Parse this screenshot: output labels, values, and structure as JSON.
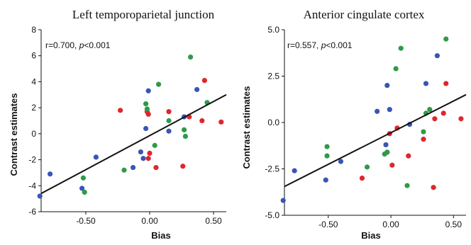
{
  "chart_data": [
    {
      "type": "scatter",
      "title": "Left temporoparietal junction",
      "xlabel": "Bias",
      "ylabel": "Contrast estimates",
      "annotation": {
        "r_text": "r=0.700, ",
        "p_var": "p",
        "p_text": "<0.001"
      },
      "xlim": [
        -0.85,
        0.6
      ],
      "ylim": [
        -6,
        8
      ],
      "xticks": [
        -0.5,
        0.0,
        0.5
      ],
      "xtick_labels": [
        "-0.50",
        "0.00",
        "0.50"
      ],
      "yticks": [
        -6,
        -4,
        -2,
        0,
        2,
        4,
        6,
        8
      ],
      "ytick_labels": [
        "-6",
        "-4",
        "-2",
        "0",
        "2",
        "4",
        "6",
        "8"
      ],
      "grid": false,
      "colors": {
        "blue": "#3a55b4",
        "red": "#e0262b",
        "green": "#2f9a48",
        "line": "#111111"
      },
      "regression_line": {
        "x": [
          -0.85,
          0.6
        ],
        "y": [
          -4.6,
          3.0
        ]
      },
      "series": [
        {
          "color": "blue",
          "x": [
            -0.86,
            -0.78,
            -0.53,
            -0.42,
            -0.13,
            -0.07,
            -0.05,
            -0.03,
            -0.01,
            0.15,
            0.27,
            0.37
          ],
          "y": [
            -4.8,
            -3.1,
            -4.2,
            -1.8,
            -2.6,
            -1.4,
            -1.9,
            0.4,
            3.3,
            0.2,
            1.3,
            3.4
          ]
        },
        {
          "color": "red",
          "x": [
            -0.23,
            -0.02,
            -0.01,
            -0.01,
            0.0,
            0.05,
            0.15,
            0.26,
            0.31,
            0.41,
            0.43,
            0.56
          ],
          "y": [
            1.8,
            1.7,
            1.5,
            -1.9,
            -1.5,
            -2.6,
            1.7,
            -2.5,
            1.3,
            1.0,
            4.1,
            0.9
          ]
        },
        {
          "color": "green",
          "x": [
            -0.52,
            -0.51,
            -0.2,
            -0.03,
            -0.02,
            0.04,
            0.07,
            0.15,
            0.27,
            0.28,
            0.32,
            0.45
          ],
          "y": [
            -3.4,
            -4.5,
            -2.8,
            2.3,
            1.9,
            -0.9,
            3.8,
            1.0,
            0.3,
            -0.2,
            5.9,
            2.4
          ]
        }
      ]
    },
    {
      "type": "scatter",
      "title": "Anterior cingulate cortex",
      "xlabel": "Bias",
      "ylabel": "Contrast estimates",
      "annotation": {
        "r_text": "r=0.557, ",
        "p_var": "p",
        "p_text": "<0.001"
      },
      "xlim": [
        -0.85,
        0.6
      ],
      "ylim": [
        -5,
        5
      ],
      "xticks": [
        -0.5,
        0.0,
        0.5
      ],
      "xtick_labels": [
        "-0.50",
        "0.00",
        "0.50"
      ],
      "yticks": [
        -5,
        -2.5,
        0,
        2.5,
        5
      ],
      "ytick_labels": [
        "-5.0",
        "-2.5",
        "0.0",
        "2.5",
        "5.0"
      ],
      "grid": false,
      "colors": {
        "blue": "#3a55b4",
        "red": "#e0262b",
        "green": "#2f9a48",
        "line": "#111111"
      },
      "regression_line": {
        "x": [
          -0.85,
          0.6
        ],
        "y": [
          -3.45,
          1.5
        ]
      },
      "series": [
        {
          "color": "blue",
          "x": [
            -0.86,
            -0.77,
            -0.52,
            -0.4,
            -0.11,
            -0.04,
            -0.03,
            -0.01,
            0.15,
            0.28,
            0.37
          ],
          "y": [
            -4.2,
            -2.6,
            -3.1,
            -2.1,
            0.6,
            -1.2,
            2.0,
            0.7,
            -0.1,
            2.1,
            3.6
          ]
        },
        {
          "color": "red",
          "x": [
            -0.23,
            -0.03,
            -0.01,
            0.01,
            0.05,
            0.14,
            0.26,
            0.34,
            0.35,
            0.42,
            0.44,
            0.56
          ],
          "y": [
            -3.0,
            -1.6,
            -0.6,
            -2.3,
            -0.3,
            -1.8,
            -0.9,
            -3.5,
            0.2,
            0.5,
            2.1,
            0.2
          ]
        },
        {
          "color": "green",
          "x": [
            -0.51,
            -0.51,
            -0.19,
            -0.05,
            -0.03,
            0.04,
            0.08,
            0.13,
            0.26,
            0.28,
            0.31,
            0.44
          ],
          "y": [
            -1.3,
            -1.8,
            -2.4,
            -1.7,
            -1.6,
            2.9,
            4.0,
            -3.4,
            -0.5,
            0.5,
            0.7,
            4.5
          ]
        }
      ]
    }
  ]
}
